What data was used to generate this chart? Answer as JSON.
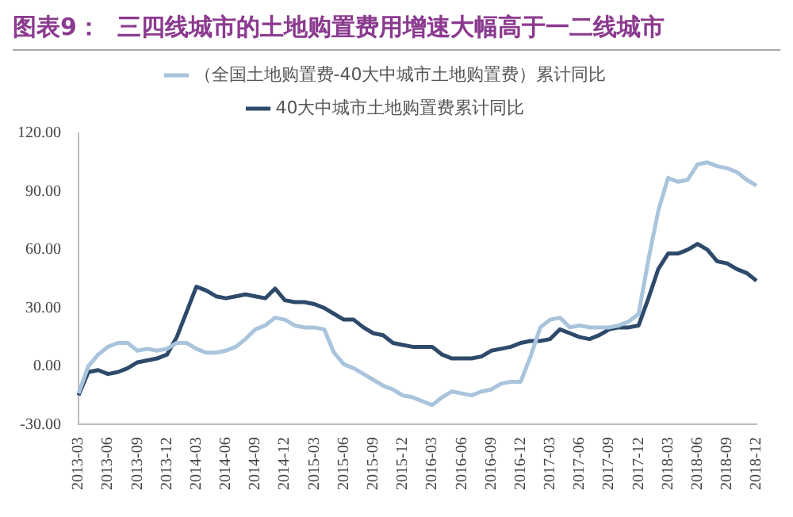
{
  "chart_data": {
    "type": "line",
    "title": "图表9：  三四线城市的土地购置费用增速大幅高于一二线城市",
    "categories": [
      "2013-03",
      null,
      null,
      "2013-06",
      null,
      null,
      "2013-09",
      null,
      null,
      "2013-12",
      null,
      null,
      "2014-03",
      null,
      null,
      "2014-06",
      null,
      null,
      "2014-09",
      null,
      null,
      "2014-12",
      null,
      null,
      "2015-03",
      null,
      null,
      "2015-06",
      null,
      null,
      "2015-09",
      null,
      null,
      "2015-12",
      null,
      null,
      "2016-03",
      null,
      null,
      "2016-06",
      null,
      null,
      "2016-09",
      null,
      null,
      "2016-12",
      null,
      null,
      "2017-03",
      null,
      null,
      "2017-06",
      null,
      null,
      "2017-09",
      null,
      null,
      "2017-12",
      null,
      null,
      "2018-03",
      null,
      null,
      "2018-06",
      null,
      null,
      "2018-09",
      null,
      null,
      "2018-12"
    ],
    "series": [
      {
        "name": "（全国土地购置费-40大中城市土地购置费）累计同比",
        "color": "#a9c4dc",
        "values": [
          -14,
          0,
          6,
          10,
          12,
          12,
          8,
          9,
          8,
          9,
          12,
          12,
          9,
          7,
          7,
          8,
          10,
          14,
          19,
          21,
          25,
          24,
          21,
          20,
          20,
          19,
          7,
          1,
          -1,
          -4,
          -7,
          -10,
          -12,
          -15,
          -16,
          -18,
          -20,
          -16,
          -13,
          -14,
          -15,
          -13,
          -12,
          -9,
          -8,
          -8,
          5,
          20,
          24,
          25,
          20,
          21,
          20,
          20,
          20,
          21,
          23,
          27,
          55,
          80,
          97,
          95,
          96,
          104,
          105,
          103,
          102,
          100,
          96,
          93
        ]
      },
      {
        "name": "40大中城市土地购置费累计同比",
        "color": "#2e4a6b",
        "values": [
          -15,
          -3,
          -2,
          -4,
          -3,
          -1,
          2,
          3,
          4,
          6,
          15,
          28,
          41,
          39,
          36,
          35,
          36,
          37,
          36,
          35,
          40,
          34,
          33,
          33,
          32,
          30,
          27,
          24,
          24,
          20,
          17,
          16,
          12,
          11,
          10,
          10,
          10,
          6,
          4,
          4,
          4,
          5,
          8,
          9,
          10,
          12,
          13,
          13,
          14,
          19,
          17,
          15,
          14,
          16,
          19,
          20,
          20,
          21,
          35,
          50,
          58,
          58,
          60,
          63,
          60,
          54,
          53,
          50,
          48,
          44
        ]
      }
    ],
    "ylim": [
      -30,
      120
    ],
    "yticks": [
      {
        "value": -30,
        "label": "-30.00"
      },
      {
        "value": 0,
        "label": "0.00"
      },
      {
        "value": 30,
        "label": "30.00"
      },
      {
        "value": 60,
        "label": "60.00"
      },
      {
        "value": 90,
        "label": "90.00"
      },
      {
        "value": 120,
        "label": "120.00"
      }
    ],
    "grid": false,
    "legend": "top",
    "marker": "none",
    "line_style": "solid"
  }
}
